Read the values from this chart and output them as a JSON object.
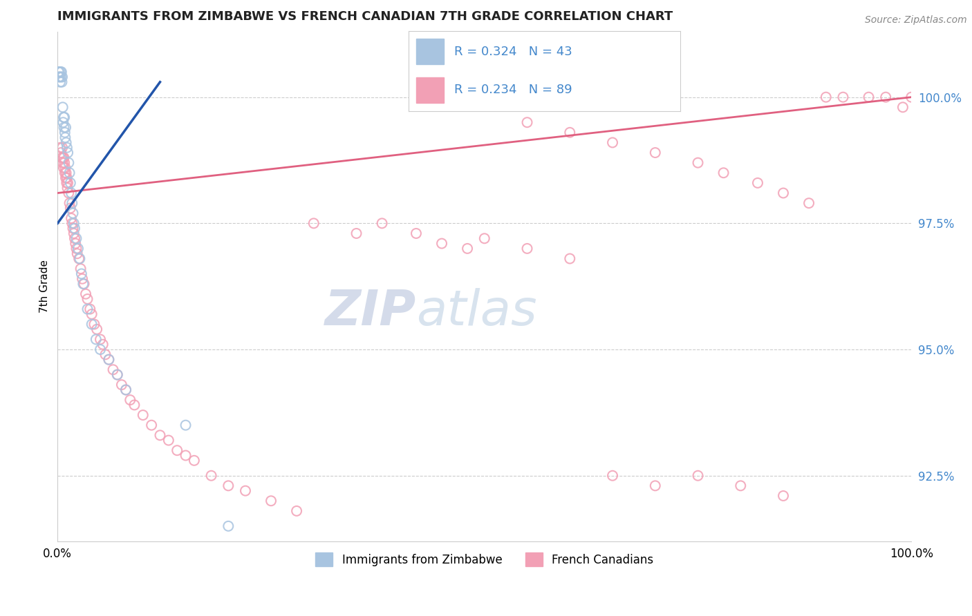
{
  "title": "IMMIGRANTS FROM ZIMBABWE VS FRENCH CANADIAN 7TH GRADE CORRELATION CHART",
  "source": "Source: ZipAtlas.com",
  "ylabel": "7th Grade",
  "ytick_labels": [
    "92.5%",
    "95.0%",
    "97.5%",
    "100.0%"
  ],
  "ytick_values": [
    92.5,
    95.0,
    97.5,
    100.0
  ],
  "xlim": [
    0.0,
    100.0
  ],
  "ylim": [
    91.2,
    101.3
  ],
  "legend_blue_label": "R = 0.324   N = 43",
  "legend_pink_label": "R = 0.234   N = 89",
  "blue_color": "#a8c4e0",
  "pink_color": "#f2a0b5",
  "blue_line_color": "#2255aa",
  "pink_line_color": "#e06080",
  "watermark_zip": "ZIP",
  "watermark_atlas": "atlas",
  "blue_scatter_x": [
    0.1,
    0.15,
    0.2,
    0.25,
    0.3,
    0.35,
    0.4,
    0.45,
    0.5,
    0.55,
    0.6,
    0.65,
    0.7,
    0.75,
    0.8,
    0.85,
    0.9,
    0.95,
    1.0,
    1.1,
    1.2,
    1.3,
    1.4,
    1.5,
    1.6,
    1.7,
    1.8,
    1.9,
    2.0,
    2.2,
    2.4,
    2.6,
    2.8,
    3.0,
    3.5,
    4.0,
    4.5,
    5.0,
    6.0,
    7.0,
    8.0,
    15.0,
    20.0
  ],
  "blue_scatter_y": [
    100.5,
    100.4,
    100.5,
    100.4,
    100.3,
    100.5,
    100.4,
    100.5,
    100.3,
    100.4,
    99.8,
    99.5,
    99.6,
    99.4,
    99.6,
    99.3,
    99.2,
    99.4,
    99.1,
    99.0,
    98.9,
    98.7,
    98.5,
    98.3,
    98.1,
    97.9,
    97.7,
    97.5,
    97.4,
    97.2,
    97.0,
    96.8,
    96.5,
    96.3,
    95.8,
    95.5,
    95.2,
    95.0,
    94.8,
    94.5,
    94.2,
    93.5,
    91.5
  ],
  "pink_scatter_x": [
    0.3,
    0.4,
    0.5,
    0.55,
    0.6,
    0.65,
    0.7,
    0.75,
    0.8,
    0.85,
    0.9,
    0.95,
    1.0,
    1.05,
    1.1,
    1.15,
    1.2,
    1.3,
    1.4,
    1.5,
    1.6,
    1.7,
    1.8,
    1.9,
    2.0,
    2.1,
    2.2,
    2.3,
    2.5,
    2.7,
    2.9,
    3.1,
    3.3,
    3.5,
    3.8,
    4.0,
    4.3,
    4.6,
    5.0,
    5.3,
    5.6,
    6.0,
    6.5,
    7.0,
    7.5,
    8.0,
    8.5,
    9.0,
    10.0,
    11.0,
    12.0,
    13.0,
    14.0,
    15.0,
    16.0,
    18.0,
    20.0,
    22.0,
    25.0,
    28.0,
    30.0,
    35.0,
    38.0,
    42.0,
    45.0,
    48.0,
    50.0,
    55.0,
    60.0,
    65.0,
    70.0,
    75.0,
    80.0,
    85.0,
    90.0,
    92.0,
    95.0,
    97.0,
    99.0,
    100.0,
    55.0,
    60.0,
    65.0,
    70.0,
    75.0,
    78.0,
    82.0,
    85.0,
    88.0
  ],
  "pink_scatter_y": [
    99.0,
    98.9,
    98.8,
    99.0,
    98.7,
    98.8,
    98.6,
    98.8,
    98.7,
    98.5,
    98.6,
    98.4,
    98.5,
    98.3,
    98.4,
    98.2,
    98.3,
    98.1,
    97.9,
    97.8,
    97.6,
    97.5,
    97.4,
    97.3,
    97.2,
    97.1,
    97.0,
    96.9,
    96.8,
    96.6,
    96.4,
    96.3,
    96.1,
    96.0,
    95.8,
    95.7,
    95.5,
    95.4,
    95.2,
    95.1,
    94.9,
    94.8,
    94.6,
    94.5,
    94.3,
    94.2,
    94.0,
    93.9,
    93.7,
    93.5,
    93.3,
    93.2,
    93.0,
    92.9,
    92.8,
    92.5,
    92.3,
    92.2,
    92.0,
    91.8,
    97.5,
    97.3,
    97.5,
    97.3,
    97.1,
    97.0,
    97.2,
    97.0,
    96.8,
    92.5,
    92.3,
    92.5,
    92.3,
    92.1,
    100.0,
    100.0,
    100.0,
    100.0,
    99.8,
    100.0,
    99.5,
    99.3,
    99.1,
    98.9,
    98.7,
    98.5,
    98.3,
    98.1,
    97.9
  ]
}
